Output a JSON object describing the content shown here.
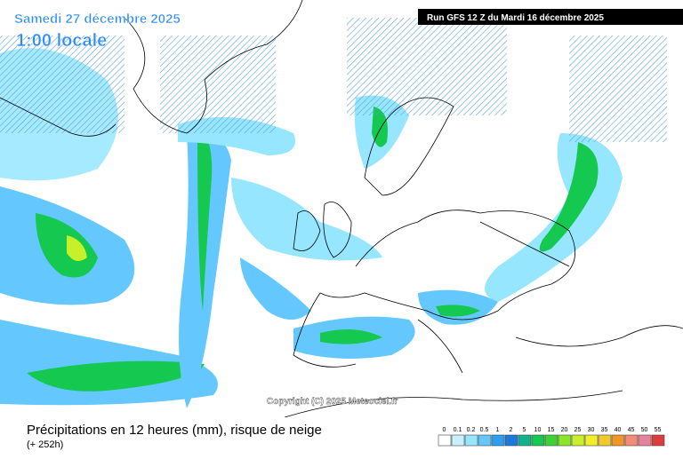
{
  "header": {
    "valid_date": "Samedi 27 décembre 2025",
    "local_time": "1:00 locale",
    "run": "Run GFS 12 Z du Mardi 16 décembre 2025"
  },
  "copyright": "Copyright (C) 2025 Meteociel.fr",
  "footer": {
    "title": "Précipitations en 12 heures (mm), risque de neige",
    "lead_time": "(+ 252h)"
  },
  "legend": {
    "labels": [
      "0",
      "0.1",
      "0.2",
      "0.5",
      "1",
      "2",
      "5",
      "10",
      "15",
      "20",
      "25",
      "30",
      "35",
      "40",
      "45",
      "50",
      "55"
    ],
    "colors": [
      "#ffffff",
      "#c8f0ff",
      "#96e6ff",
      "#64c8ff",
      "#2ca0f0",
      "#1e78dc",
      "#10b48c",
      "#14c850",
      "#3cd232",
      "#8ce628",
      "#c8f028",
      "#f0f028",
      "#f0c828",
      "#f09628",
      "#f08c78",
      "#e6829b",
      "#dc3c3c"
    ]
  }
}
